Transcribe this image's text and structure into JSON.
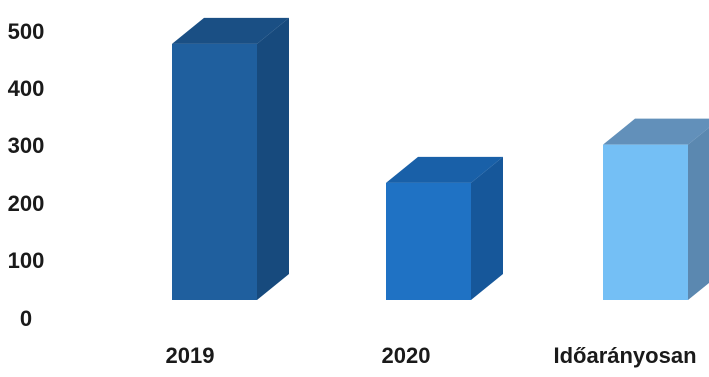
{
  "chart_data": {
    "type": "bar",
    "style": "3d-column",
    "categories": [
      "2019",
      "2020",
      "Időarányosan"
    ],
    "values": [
      470,
      215,
      285
    ],
    "colors": {
      "front": [
        "#1f5f9e",
        "#1f72c4",
        "#74bff5"
      ],
      "top": [
        "#1a4f84",
        "#1960a8",
        "#6290ba"
      ],
      "side": [
        "#174a7d",
        "#16579a",
        "#5b88b0"
      ]
    },
    "yticks": [
      0,
      100,
      200,
      300,
      400,
      500
    ],
    "ylim": [
      0,
      500
    ],
    "grid": false,
    "legend": "none",
    "title": "",
    "xlabel": "",
    "ylabel": ""
  }
}
